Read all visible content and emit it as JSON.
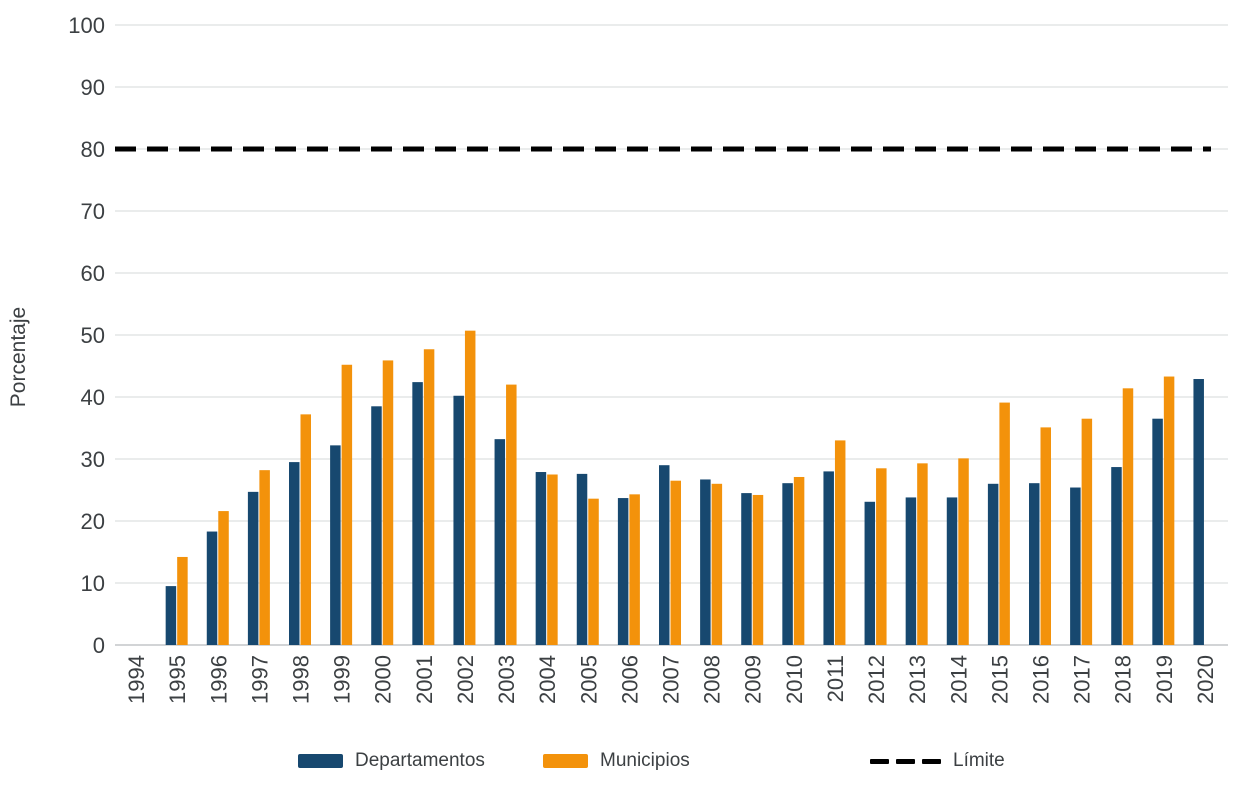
{
  "chart_data": {
    "type": "bar",
    "title": "",
    "xlabel": "",
    "ylabel": "Porcentaje",
    "ylim": [
      0,
      100
    ],
    "yticks": [
      0,
      10,
      20,
      30,
      40,
      50,
      60,
      70,
      80,
      90,
      100
    ],
    "grid": true,
    "legend_position": "bottom",
    "categories": [
      "1994",
      "1995",
      "1996",
      "1997",
      "1998",
      "1999",
      "2000",
      "2001",
      "2002",
      "2003",
      "2004",
      "2005",
      "2006",
      "2007",
      "2008",
      "2009",
      "2010",
      "2011",
      "2012",
      "2013",
      "2014",
      "2015",
      "2016",
      "2017",
      "2018",
      "2019",
      "2020"
    ],
    "series": [
      {
        "name": "Departamentos",
        "color": "#17486F",
        "values": [
          null,
          9.5,
          18.3,
          24.7,
          29.5,
          32.2,
          38.5,
          42.4,
          40.2,
          33.2,
          27.9,
          27.6,
          23.7,
          29.0,
          26.7,
          24.5,
          26.1,
          28.0,
          23.1,
          23.8,
          23.8,
          26.0,
          26.1,
          25.4,
          28.7,
          36.5,
          42.9
        ]
      },
      {
        "name": "Municipios",
        "color": "#F3920B",
        "values": [
          null,
          14.2,
          21.6,
          28.2,
          37.2,
          45.2,
          45.9,
          47.7,
          50.7,
          42.0,
          27.5,
          23.6,
          24.3,
          26.5,
          26.0,
          24.2,
          27.1,
          33.0,
          28.5,
          29.3,
          30.1,
          39.1,
          35.1,
          36.5,
          41.4,
          43.3,
          null
        ]
      }
    ],
    "reference_line": {
      "name": "Límite",
      "value": 80,
      "color": "#000000",
      "style": "dashed"
    }
  },
  "style": {
    "gridline_color": "#e4e5e6",
    "axis_line_color": "#d2d4d6",
    "text_color": "#3c4043"
  }
}
